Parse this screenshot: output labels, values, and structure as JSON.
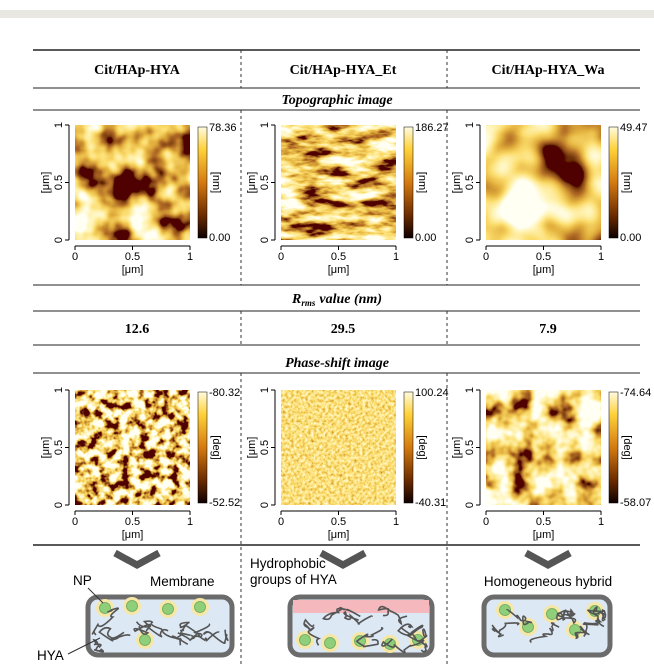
{
  "columns": [
    "Cit/HAp-HYA",
    "Cit/HAp-HYA_Et",
    "Cit/HAp-HYA_Wa"
  ],
  "sections": {
    "topographic": "Topographic image",
    "rrms": {
      "symbol": "R",
      "subscript": "rms",
      "label": "value (nm)"
    },
    "phase": "Phase-shift image"
  },
  "axis": {
    "unit": "[μm]",
    "ticks": [
      "0",
      "0.5",
      "1"
    ]
  },
  "colorbar_units": {
    "topographic": "[nm]",
    "phase": "[deg]"
  },
  "topographic": [
    {
      "max": "78.36",
      "min": "0.00"
    },
    {
      "max": "186.27",
      "min": "0.00"
    },
    {
      "max": "49.47",
      "min": "0.00"
    }
  ],
  "rrms_values": [
    "12.6",
    "29.5",
    "7.9"
  ],
  "phase": [
    {
      "max": "-80.32",
      "min": "-52.52"
    },
    {
      "max": "100.24",
      "min": "-40.31"
    },
    {
      "max": "-74.64",
      "min": "-58.07"
    }
  ],
  "schematic": {
    "np": "NP",
    "membrane": "Membrane",
    "hya": "HYA",
    "hydrophobic": [
      "Hydrophobic",
      "groups of HYA"
    ],
    "homogeneous": "Homogeneous hybrid"
  }
}
